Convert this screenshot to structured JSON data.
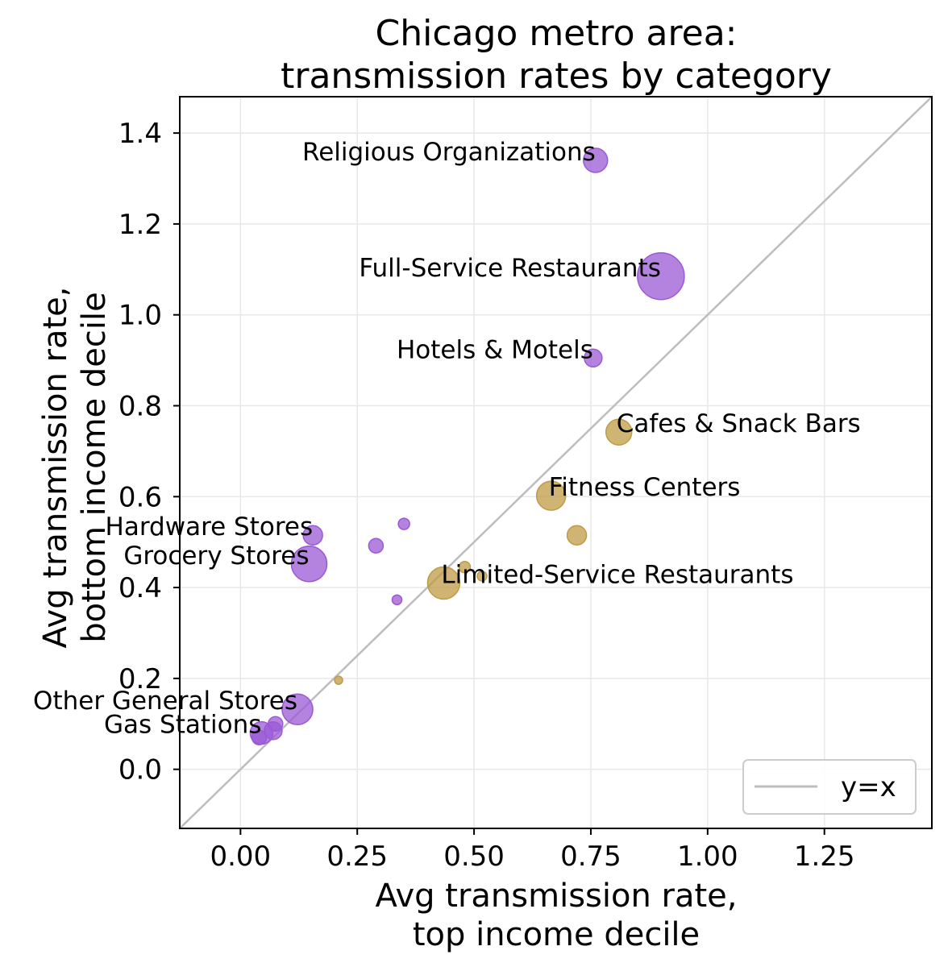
{
  "chart_data": {
    "type": "scatter",
    "title": [
      "Chicago metro area:",
      "transmission rates by category"
    ],
    "xlabel": [
      "Avg transmission rate,",
      "top income decile"
    ],
    "ylabel": [
      "Avg transmission rate,",
      "bottom income decile"
    ],
    "xlim": [
      -0.13,
      1.48
    ],
    "ylim": [
      -0.13,
      1.48
    ],
    "xticks": [
      0.0,
      0.25,
      0.5,
      0.75,
      1.0,
      1.25
    ],
    "xtick_labels": [
      "0.00",
      "0.25",
      "0.50",
      "0.75",
      "1.00",
      "1.25"
    ],
    "yticks": [
      0.0,
      0.2,
      0.4,
      0.6,
      0.8,
      1.0,
      1.2,
      1.4
    ],
    "ytick_labels": [
      "0.0",
      "0.2",
      "0.4",
      "0.6",
      "0.8",
      "1.0",
      "1.2",
      "1.4"
    ],
    "grid": true,
    "colors": {
      "purple": "#9b59d6",
      "gold": "#bf9b45",
      "reference_line": "#bdbdbd"
    },
    "reference_line": {
      "label": "y=x"
    },
    "legend": {
      "position": "bottom-right",
      "entries": [
        "y=x"
      ]
    },
    "points": [
      {
        "label": "Religious Organizations",
        "x": 0.76,
        "y": 1.34,
        "size": 15,
        "color": "purple"
      },
      {
        "label": "Full-Service Restaurants",
        "x": 0.9,
        "y": 1.085,
        "size": 29,
        "color": "purple"
      },
      {
        "label": "Hotels & Motels",
        "x": 0.755,
        "y": 0.905,
        "size": 11,
        "color": "purple"
      },
      {
        "label": "Cafes & Snack Bars",
        "x": 0.81,
        "y": 0.742,
        "size": 16,
        "color": "gold"
      },
      {
        "label": "Fitness Centers",
        "x": 0.665,
        "y": 0.602,
        "size": 18,
        "color": "gold"
      },
      {
        "label": "",
        "x": 0.72,
        "y": 0.515,
        "size": 12,
        "color": "gold"
      },
      {
        "label": "",
        "x": 0.35,
        "y": 0.54,
        "size": 7,
        "color": "purple"
      },
      {
        "label": "Hardware Stores",
        "x": 0.155,
        "y": 0.515,
        "size": 12,
        "color": "purple"
      },
      {
        "label": "",
        "x": 0.29,
        "y": 0.492,
        "size": 9,
        "color": "purple"
      },
      {
        "label": "Grocery Stores",
        "x": 0.147,
        "y": 0.452,
        "size": 22,
        "color": "purple"
      },
      {
        "label": "",
        "x": 0.48,
        "y": 0.445,
        "size": 7,
        "color": "gold"
      },
      {
        "label": "",
        "x": 0.517,
        "y": 0.425,
        "size": 6,
        "color": "gold"
      },
      {
        "label": "Limited-Service Restaurants",
        "x": 0.435,
        "y": 0.41,
        "size": 20,
        "color": "gold"
      },
      {
        "label": "",
        "x": 0.335,
        "y": 0.373,
        "size": 6,
        "color": "purple"
      },
      {
        "label": "",
        "x": 0.21,
        "y": 0.196,
        "size": 5,
        "color": "gold"
      },
      {
        "label": "Other General Stores",
        "x": 0.122,
        "y": 0.132,
        "size": 19,
        "color": "purple"
      },
      {
        "label": "",
        "x": 0.075,
        "y": 0.1,
        "size": 9,
        "color": "purple"
      },
      {
        "label": "",
        "x": 0.07,
        "y": 0.085,
        "size": 11,
        "color": "purple"
      },
      {
        "label": "Gas Stations",
        "x": 0.045,
        "y": 0.08,
        "size": 14,
        "color": "purple"
      },
      {
        "label": "",
        "x": 0.04,
        "y": 0.07,
        "size": 9,
        "color": "purple"
      }
    ]
  }
}
